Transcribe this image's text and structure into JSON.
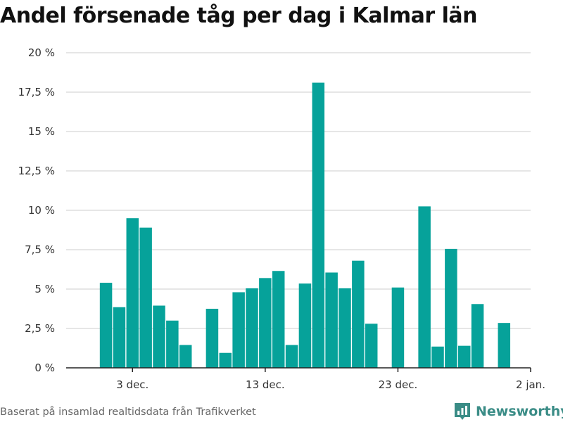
{
  "title": "Andel försenade tåg per dag i Kalmar län",
  "source": "Baserat på insamlad realtidsdata från Trafikverket",
  "brand": {
    "name": "Newsworthy",
    "icon": "newsworthy-logo-icon"
  },
  "colors": {
    "bar": "#06a29a",
    "grid": "#dedede",
    "axis": "#222222",
    "brand": "#3a8c86"
  },
  "chart_data": {
    "type": "bar",
    "title": "Andel försenade tåg per dag i Kalmar län",
    "xlabel": "",
    "ylabel": "",
    "ylim": [
      0,
      20
    ],
    "grid": true,
    "y_ticks": [
      {
        "value": 0,
        "label": "0 %"
      },
      {
        "value": 2.5,
        "label": "2,5 %"
      },
      {
        "value": 5,
        "label": "5 %"
      },
      {
        "value": 7.5,
        "label": "7,5 %"
      },
      {
        "value": 10,
        "label": "10 %"
      },
      {
        "value": 12.5,
        "label": "12,5 %"
      },
      {
        "value": 15,
        "label": "15 %"
      },
      {
        "value": 17.5,
        "label": "17,5 %"
      },
      {
        "value": 20,
        "label": "20 %"
      }
    ],
    "x_ticks": [
      {
        "date": "2018-12-03",
        "label": "3 dec."
      },
      {
        "date": "2018-12-13",
        "label": "13 dec."
      },
      {
        "date": "2018-12-23",
        "label": "23 dec."
      },
      {
        "date": "2019-01-02",
        "label": "2 jan."
      }
    ],
    "x_range": [
      "2018-11-28",
      "2019-01-02"
    ],
    "points": [
      {
        "date": "2018-12-01",
        "value": 5.4
      },
      {
        "date": "2018-12-02",
        "value": 3.85
      },
      {
        "date": "2018-12-03",
        "value": 9.5
      },
      {
        "date": "2018-12-04",
        "value": 8.9
      },
      {
        "date": "2018-12-05",
        "value": 3.95
      },
      {
        "date": "2018-12-06",
        "value": 3.0
      },
      {
        "date": "2018-12-07",
        "value": 1.45
      },
      {
        "date": "2018-12-09",
        "value": 3.75
      },
      {
        "date": "2018-12-10",
        "value": 0.95
      },
      {
        "date": "2018-12-11",
        "value": 4.8
      },
      {
        "date": "2018-12-12",
        "value": 5.05
      },
      {
        "date": "2018-12-13",
        "value": 5.7
      },
      {
        "date": "2018-12-14",
        "value": 6.15
      },
      {
        "date": "2018-12-15",
        "value": 1.45
      },
      {
        "date": "2018-12-16",
        "value": 5.35
      },
      {
        "date": "2018-12-17",
        "value": 18.1
      },
      {
        "date": "2018-12-18",
        "value": 6.05
      },
      {
        "date": "2018-12-19",
        "value": 5.05
      },
      {
        "date": "2018-12-20",
        "value": 6.8
      },
      {
        "date": "2018-12-21",
        "value": 2.8
      },
      {
        "date": "2018-12-23",
        "value": 5.1
      },
      {
        "date": "2018-12-25",
        "value": 10.25
      },
      {
        "date": "2018-12-26",
        "value": 1.35
      },
      {
        "date": "2018-12-27",
        "value": 7.55
      },
      {
        "date": "2018-12-28",
        "value": 1.4
      },
      {
        "date": "2018-12-29",
        "value": 4.05
      },
      {
        "date": "2018-12-31",
        "value": 2.85
      }
    ]
  }
}
